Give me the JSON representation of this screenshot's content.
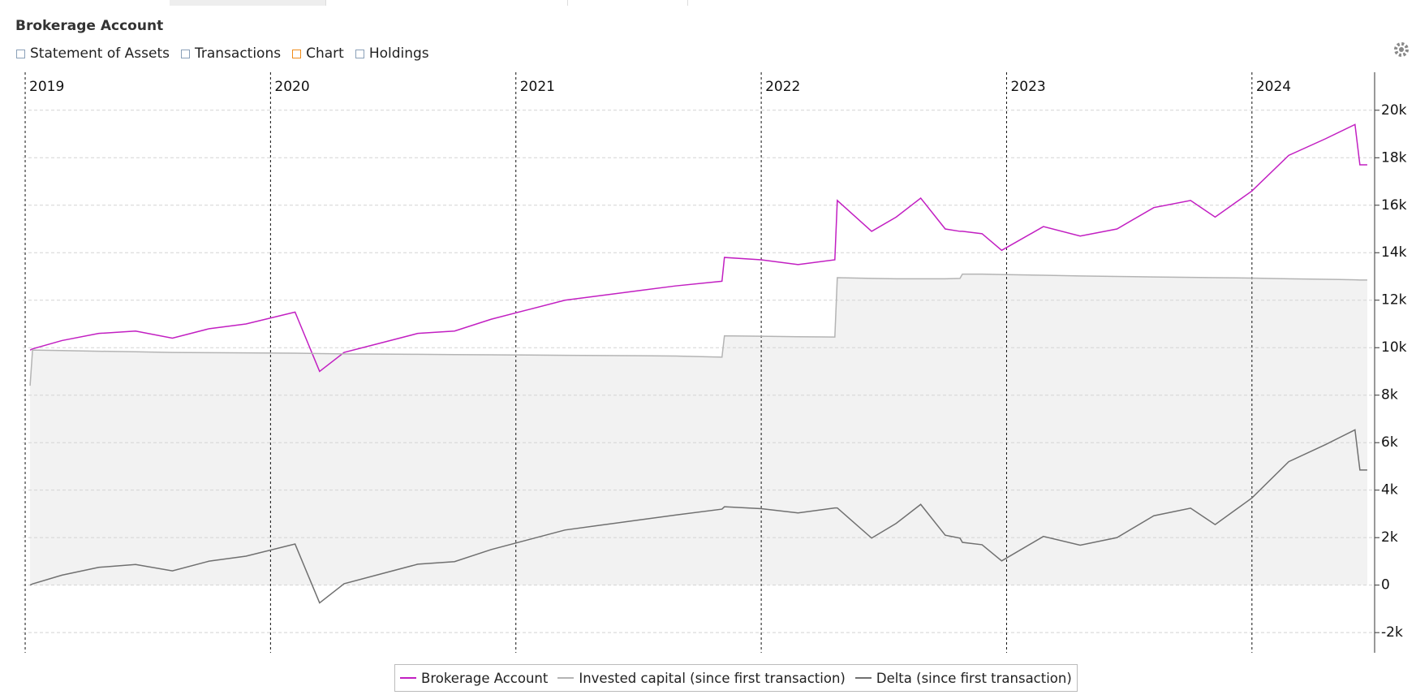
{
  "tabs": [
    "Statement of Assets",
    "Transactions",
    "Chart",
    "Holdings"
  ],
  "chart_data": {
    "type": "line",
    "title": "Brokerage Account",
    "x": [
      2019.02,
      2019.03,
      2019.15,
      2019.3,
      2019.45,
      2019.6,
      2019.75,
      2019.9,
      2020.1,
      2020.2,
      2020.3,
      2020.45,
      2020.6,
      2020.75,
      2020.9,
      2021.05,
      2021.2,
      2021.35,
      2021.5,
      2021.65,
      2021.84,
      2021.85,
      2022.0,
      2022.15,
      2022.3,
      2022.31,
      2022.45,
      2022.55,
      2022.65,
      2022.75,
      2022.81,
      2022.82,
      2022.9,
      2022.98,
      2023.15,
      2023.3,
      2023.45,
      2023.6,
      2023.75,
      2023.85,
      2024.0,
      2024.15,
      2024.3,
      2024.42,
      2024.44,
      2024.47
    ],
    "series": [
      {
        "name": "Brokerage Account",
        "color": "#c21fc2",
        "values": [
          9900,
          9950,
          10300,
          10600,
          10700,
          10400,
          10800,
          11000,
          11500,
          9000,
          9800,
          10200,
          10600,
          10700,
          11200,
          11600,
          12000,
          12200,
          12400,
          12600,
          12800,
          13800,
          13700,
          13500,
          13700,
          16200,
          14900,
          15500,
          16300,
          15000,
          14900,
          14900,
          14800,
          14100,
          15100,
          14700,
          15000,
          15900,
          16200,
          15500,
          16600,
          18100,
          18800,
          19400,
          17700,
          17700
        ]
      },
      {
        "name": "Invested capital (since first transaction)",
        "color": "#b4b4b4",
        "fill": "#f2f2f2",
        "values": [
          8400,
          9900,
          9880,
          9850,
          9830,
          9800,
          9790,
          9780,
          9770,
          9750,
          9740,
          9730,
          9720,
          9710,
          9700,
          9690,
          9680,
          9670,
          9660,
          9650,
          9600,
          10500,
          10480,
          10460,
          10450,
          12950,
          12920,
          12900,
          12900,
          12900,
          12920,
          13100,
          13100,
          13080,
          13050,
          13020,
          13000,
          12980,
          12960,
          12950,
          12930,
          12900,
          12880,
          12860,
          12850,
          12850
        ]
      },
      {
        "name": "Delta (since first transaction)",
        "color": "#707070",
        "values": [
          0,
          50,
          420,
          750,
          870,
          600,
          1010,
          1220,
          1730,
          -750,
          60,
          470,
          880,
          990,
          1500,
          1910,
          2320,
          2530,
          2740,
          2950,
          3200,
          3300,
          3220,
          3040,
          3250,
          3250,
          1980,
          2600,
          3400,
          2100,
          1980,
          1800,
          1700,
          1020,
          2050,
          1680,
          2000,
          2920,
          3240,
          2550,
          3670,
          5200,
          5920,
          6540,
          4850,
          4850
        ]
      }
    ],
    "xlim": [
      2018.99,
      2024.5
    ],
    "xticks": [
      2019,
      2020,
      2021,
      2022,
      2023,
      2024
    ],
    "ylim": [
      -2850,
      21600
    ],
    "yticks": [
      {
        "value": -2000,
        "label": "-2k"
      },
      0,
      {
        "value": 2000,
        "label": "2k"
      },
      {
        "value": 4000,
        "label": "4k"
      },
      {
        "value": 6000,
        "label": "6k"
      },
      {
        "value": 8000,
        "label": "8k"
      },
      {
        "value": 10000,
        "label": "10k"
      },
      {
        "value": 12000,
        "label": "12k"
      },
      {
        "value": 14000,
        "label": "14k"
      },
      {
        "value": 16000,
        "label": "16k"
      },
      {
        "value": 18000,
        "label": "18k"
      },
      {
        "value": 20000,
        "label": "20k"
      }
    ],
    "grid": true
  }
}
